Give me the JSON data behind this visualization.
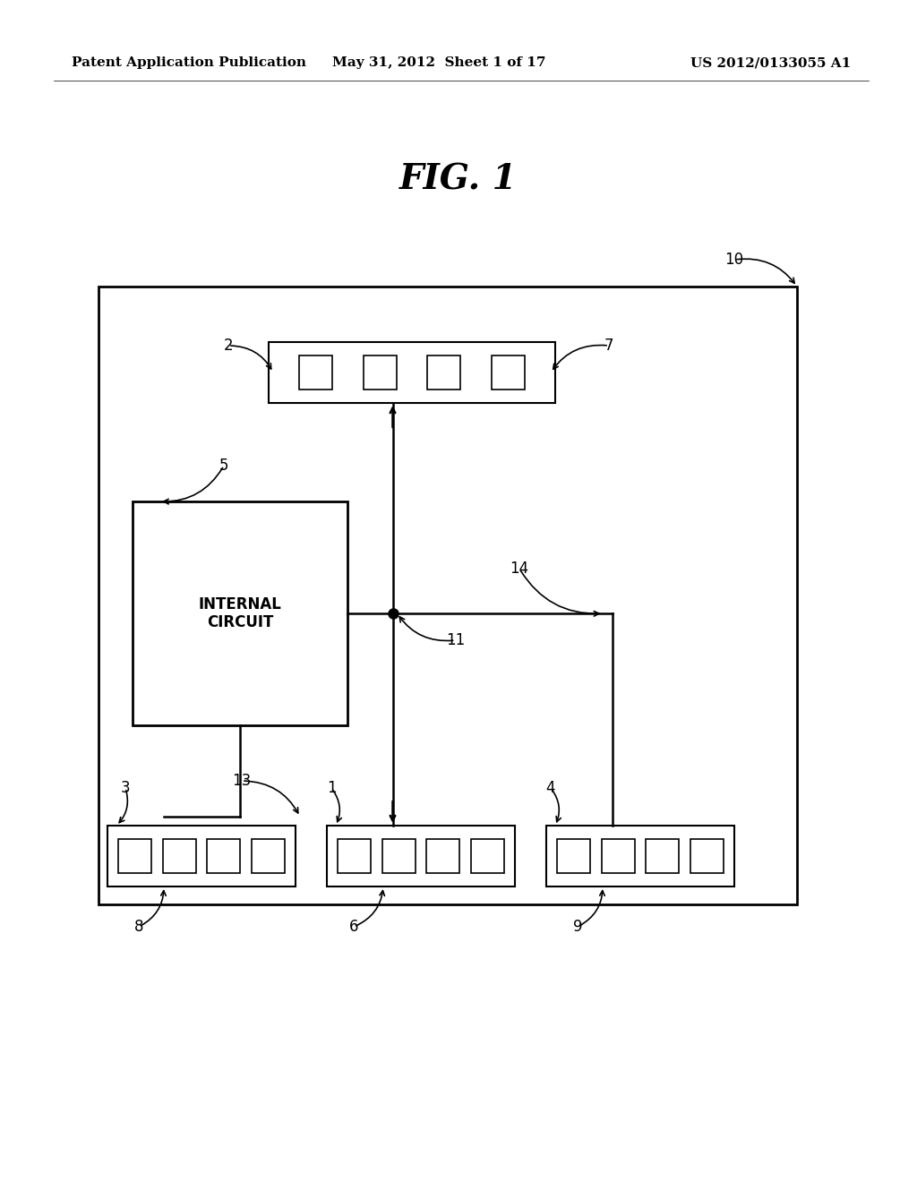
{
  "bg_color": "#ffffff",
  "header_left": "Patent Application Publication",
  "header_mid": "May 31, 2012  Sheet 1 of 17",
  "header_right": "US 2012/0133055 A1",
  "fig_title": "FIG. 1",
  "line_color": "#000000",
  "text_color": "#000000"
}
